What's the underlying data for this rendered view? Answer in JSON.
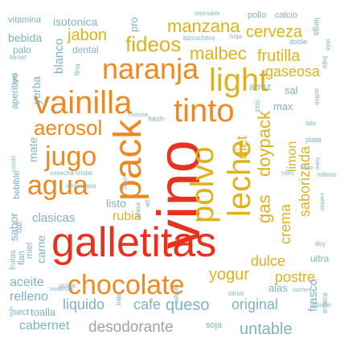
{
  "palette": {
    "red": "#e8321e",
    "orange": "#f0881e",
    "gold": "#dfb21b",
    "teal": "#7fb2c0",
    "gray": "#9ba5a8"
  },
  "words": [
    {
      "text": "galletitas",
      "color": "red"
    },
    {
      "text": "vino",
      "color": "red"
    },
    {
      "text": "pack",
      "color": "orange"
    },
    {
      "text": "tinto",
      "color": "orange"
    },
    {
      "text": "vainilla",
      "color": "orange"
    },
    {
      "text": "naranja",
      "color": "orange"
    },
    {
      "text": "chocolate",
      "color": "orange"
    },
    {
      "text": "light",
      "color": "gold"
    },
    {
      "text": "polvo",
      "color": "gold"
    },
    {
      "text": "leche",
      "color": "gold"
    },
    {
      "text": "agua",
      "color": "orange"
    },
    {
      "text": "jugo",
      "color": "orange"
    },
    {
      "text": "aerosol",
      "color": "orange"
    },
    {
      "text": "fideos",
      "color": "gold"
    },
    {
      "text": "manzana",
      "color": "gold"
    },
    {
      "text": "malbec",
      "color": "gold"
    },
    {
      "text": "gas",
      "color": "gold"
    },
    {
      "text": "doypack",
      "color": "gold"
    },
    {
      "text": "crema",
      "color": "gold"
    },
    {
      "text": "yogur",
      "color": "gold"
    },
    {
      "text": "postre",
      "color": "gold"
    },
    {
      "text": "dulce",
      "color": "gold"
    },
    {
      "text": "diet",
      "color": "gold"
    },
    {
      "text": "cerveza",
      "color": "gold"
    },
    {
      "text": "frutilla",
      "color": "gold"
    },
    {
      "text": "gaseosa",
      "color": "gold"
    },
    {
      "text": "saborizada",
      "color": "gold"
    },
    {
      "text": "limon",
      "color": "gold"
    },
    {
      "text": "rubia",
      "color": "gold"
    },
    {
      "text": "jabon",
      "color": "gold"
    },
    {
      "text": "bebida",
      "color": "teal"
    },
    {
      "text": "isotonica",
      "color": "teal"
    },
    {
      "text": "vitamina",
      "color": "teal"
    },
    {
      "text": "pro",
      "color": "teal"
    },
    {
      "text": "pollo",
      "color": "teal"
    },
    {
      "text": "calcio",
      "color": "teal"
    },
    {
      "text": "retornable",
      "color": "teal"
    },
    {
      "text": "palo",
      "color": "teal"
    },
    {
      "text": "dental",
      "color": "teal"
    },
    {
      "text": "bizcochitos",
      "color": "teal"
    },
    {
      "text": "hoja",
      "color": "teal"
    },
    {
      "text": "doble",
      "color": "teal"
    },
    {
      "text": "larga",
      "color": "teal"
    },
    {
      "text": "fernet",
      "color": "teal"
    },
    {
      "text": "vida",
      "color": "teal"
    },
    {
      "text": "yerba",
      "color": "teal"
    },
    {
      "text": "blanco",
      "color": "teal"
    },
    {
      "text": "aperitivo",
      "color": "teal"
    },
    {
      "text": "gel",
      "color": "teal"
    },
    {
      "text": "mate",
      "color": "teal"
    },
    {
      "text": "fina",
      "color": "teal"
    },
    {
      "text": "mousse",
      "color": "teal"
    },
    {
      "text": "fresh",
      "color": "teal"
    },
    {
      "text": "arroz",
      "color": "teal"
    },
    {
      "text": "sal",
      "color": "teal"
    },
    {
      "text": "max",
      "color": "teal"
    },
    {
      "text": "zinc",
      "color": "teal"
    },
    {
      "text": "baja",
      "color": "teal"
    },
    {
      "text": "plata",
      "color": "teal"
    },
    {
      "text": "cero",
      "color": "teal"
    },
    {
      "text": "active",
      "color": "teal"
    },
    {
      "text": "lata",
      "color": "teal"
    },
    {
      "text": "bano",
      "color": "teal"
    },
    {
      "text": "relleno",
      "color": "teal"
    },
    {
      "text": "cosecha",
      "color": "teal"
    },
    {
      "text": "cristal",
      "color": "teal"
    },
    {
      "text": "sabor",
      "color": "teal"
    },
    {
      "text": "bebible",
      "color": "teal"
    },
    {
      "text": "clasicas",
      "color": "teal"
    },
    {
      "text": "listo",
      "color": "teal"
    },
    {
      "text": "taco",
      "color": "teal"
    },
    {
      "text": "art",
      "color": "teal"
    },
    {
      "text": "americano",
      "color": "teal"
    },
    {
      "text": "grasa",
      "color": "teal"
    },
    {
      "text": "uat",
      "color": "teal"
    },
    {
      "text": "frutas",
      "color": "teal"
    },
    {
      "text": "flan",
      "color": "teal"
    },
    {
      "text": "miel",
      "color": "teal"
    },
    {
      "text": "carne",
      "color": "teal"
    },
    {
      "text": "aceite",
      "color": "teal"
    },
    {
      "text": "multifruta",
      "color": "teal"
    },
    {
      "text": "relleno",
      "color": "teal"
    },
    {
      "text": "sect",
      "color": "teal"
    },
    {
      "text": "toalla",
      "color": "teal"
    },
    {
      "text": "liquido",
      "color": "teal"
    },
    {
      "text": "cafe",
      "color": "teal"
    },
    {
      "text": "queso",
      "color": "teal"
    },
    {
      "text": "original",
      "color": "teal"
    },
    {
      "text": "alas",
      "color": "teal"
    },
    {
      "text": "cabernet",
      "color": "teal"
    },
    {
      "text": "desodorante",
      "color": "gray"
    },
    {
      "text": "soja",
      "color": "teal"
    },
    {
      "text": "untable",
      "color": "teal"
    },
    {
      "text": "frasco",
      "color": "teal"
    },
    {
      "text": "entera",
      "color": "teal"
    },
    {
      "text": "ultra",
      "color": "teal"
    },
    {
      "text": "doy",
      "color": "teal"
    },
    {
      "text": "noches",
      "color": "teal"
    },
    {
      "text": "citrus",
      "color": "teal"
    },
    {
      "text": "cocido",
      "color": "teal"
    },
    {
      "text": "sueltas",
      "color": "teal"
    },
    {
      "text": "pulpa",
      "color": "teal"
    },
    {
      "text": "brillo",
      "color": "teal"
    },
    {
      "text": "bano",
      "color": "teal"
    },
    {
      "text": "rallado",
      "color": "teal"
    },
    {
      "text": "bajo",
      "color": "teal"
    },
    {
      "text": "liquida",
      "color": "teal"
    }
  ]
}
